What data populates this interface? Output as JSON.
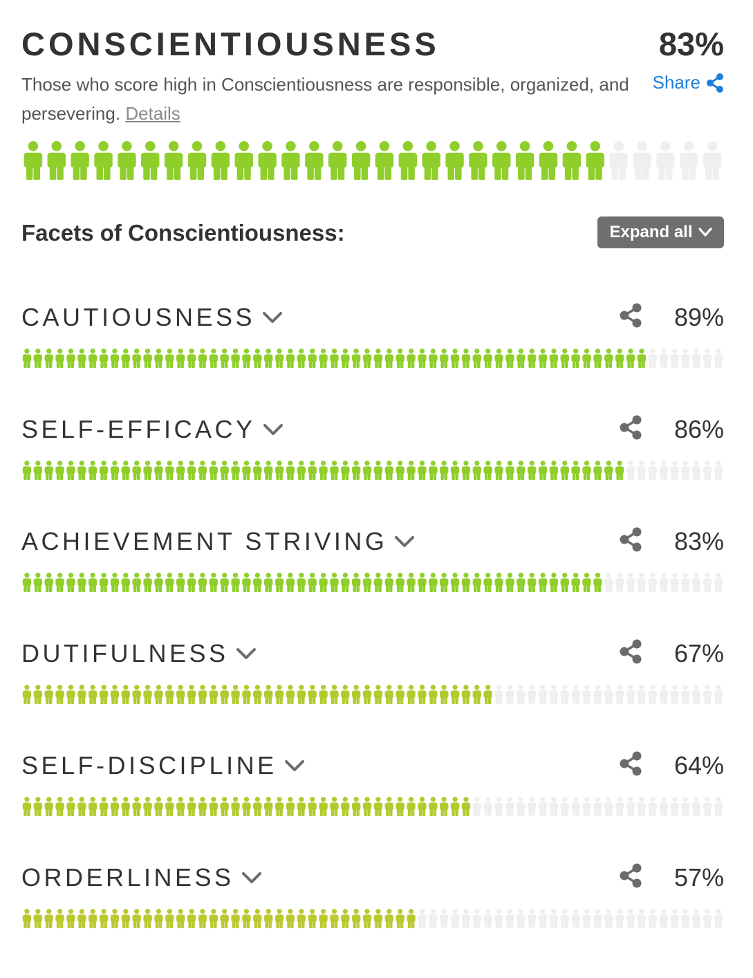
{
  "header": {
    "title": "CONSCIENTIOUSNESS",
    "score": "83%",
    "score_value": 83,
    "description": "Those who score high in Conscientiousness are responsible, organized, and persevering.",
    "details_label": "Details",
    "share_label": "Share",
    "share_icon": "share-icon",
    "bar_total": 30
  },
  "facets_section": {
    "heading": "Facets of Conscientiousness:",
    "expand_label": "Expand all",
    "expand_icon": "chevron-down-icon"
  },
  "facets": [
    {
      "name": "CAUTIOUSNESS",
      "percent": "89%",
      "value": 89,
      "color": "#8fce2b"
    },
    {
      "name": "SELF-EFFICACY",
      "percent": "86%",
      "value": 86,
      "color": "#8fce2b"
    },
    {
      "name": "ACHIEVEMENT STRIVING",
      "percent": "83%",
      "value": 83,
      "color": "#8fce2b"
    },
    {
      "name": "DUTIFULNESS",
      "percent": "67%",
      "value": 67,
      "color": "#b2ca2f"
    },
    {
      "name": "SELF-DISCIPLINE",
      "percent": "64%",
      "value": 64,
      "color": "#b2ca2f"
    },
    {
      "name": "ORDERLINESS",
      "percent": "57%",
      "value": 57,
      "color": "#bcc832"
    }
  ],
  "facet_bar_total": 64,
  "colors": {
    "main_fill": "#8fce2b",
    "empty": "#efefef",
    "share_blue": "#1e7ed8",
    "icon_gray": "#6b6b6b"
  }
}
